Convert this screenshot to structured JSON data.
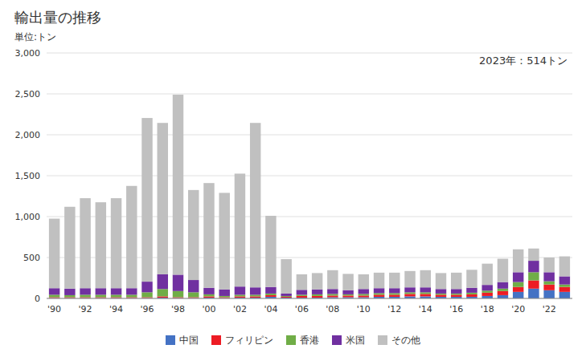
{
  "chart_data": {
    "type": "bar",
    "stacked": true,
    "title": "輸出量の推移",
    "subtitle": "単位:トン",
    "annotation": "2023年：514トン",
    "categories": [
      "'90",
      null,
      "'92",
      null,
      "'94",
      null,
      "'96",
      null,
      "'98",
      null,
      "'00",
      null,
      "'02",
      null,
      "'04",
      null,
      "'06",
      null,
      "'08",
      null,
      "'10",
      null,
      "'12",
      null,
      "'14",
      null,
      "'16",
      null,
      "'18",
      null,
      "'20",
      null,
      "'22",
      null
    ],
    "series": [
      {
        "name": "中国",
        "color": "#4472c4",
        "values": [
          5,
          5,
          5,
          5,
          5,
          5,
          5,
          10,
          5,
          5,
          10,
          5,
          10,
          10,
          20,
          10,
          10,
          10,
          15,
          15,
          15,
          20,
          20,
          25,
          25,
          20,
          20,
          20,
          30,
          40,
          80,
          120,
          100,
          80
        ]
      },
      {
        "name": "フィリピン",
        "color": "#ed1c24",
        "values": [
          10,
          10,
          10,
          10,
          10,
          10,
          10,
          15,
          10,
          10,
          15,
          10,
          15,
          15,
          20,
          10,
          20,
          20,
          20,
          20,
          20,
          25,
          25,
          30,
          30,
          25,
          25,
          30,
          40,
          50,
          60,
          100,
          70,
          60
        ]
      },
      {
        "name": "香港",
        "color": "#70ad47",
        "values": [
          30,
          25,
          30,
          30,
          30,
          30,
          60,
          90,
          75,
          60,
          25,
          15,
          20,
          20,
          20,
          10,
          15,
          20,
          20,
          15,
          20,
          20,
          20,
          20,
          20,
          15,
          15,
          20,
          25,
          30,
          60,
          100,
          40,
          30
        ]
      },
      {
        "name": "米国",
        "color": "#7030a0",
        "values": [
          80,
          80,
          80,
          80,
          80,
          80,
          130,
          180,
          200,
          150,
          80,
          80,
          100,
          90,
          80,
          30,
          60,
          60,
          60,
          50,
          60,
          60,
          60,
          60,
          60,
          55,
          55,
          60,
          70,
          80,
          120,
          140,
          110,
          100
        ]
      },
      {
        "name": "その他",
        "color": "#c0c0c0",
        "values": [
          850,
          1000,
          1100,
          1050,
          1100,
          1250,
          2000,
          1850,
          2200,
          1100,
          1280,
          1180,
          1380,
          2010,
          870,
          420,
          190,
          200,
          230,
          200,
          180,
          190,
          190,
          200,
          210,
          195,
          200,
          220,
          260,
          285,
          280,
          150,
          180,
          244
        ]
      }
    ],
    "ylim": [
      0,
      3000
    ],
    "yticks": [
      0,
      500,
      {
        "value": 1000,
        "label": "1,000"
      },
      {
        "value": 1500,
        "label": "1,500"
      },
      {
        "value": 2000,
        "label": "2,000"
      },
      {
        "value": 2500,
        "label": "2,500"
      },
      {
        "value": 3000,
        "label": "3,000"
      }
    ],
    "grid": true,
    "legend": "bottom"
  }
}
